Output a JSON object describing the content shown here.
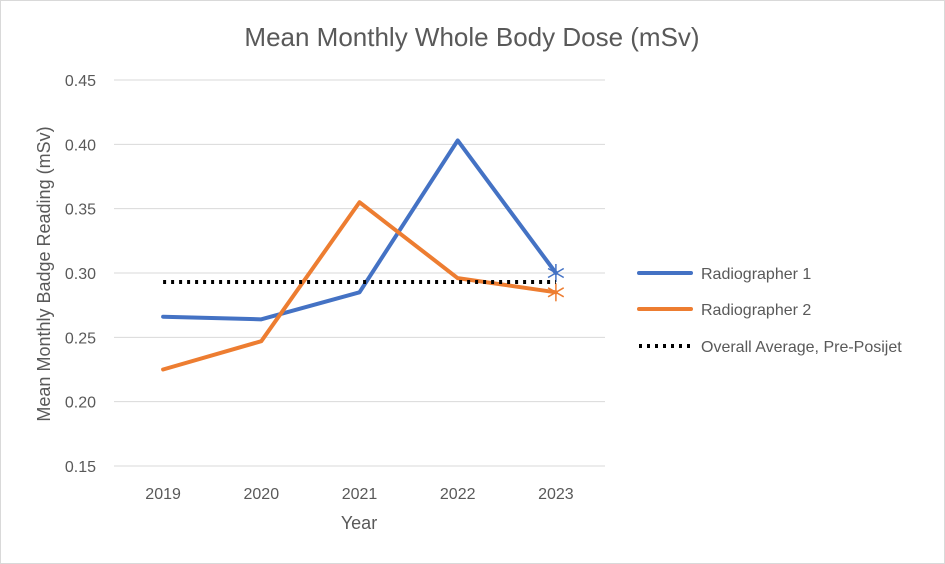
{
  "chart_data": {
    "type": "line",
    "title": "Mean Monthly Whole Body Dose (mSv)",
    "xlabel": "Year",
    "ylabel": "Mean Monthly Badge Reading (mSv)",
    "categories": [
      "2019",
      "2020",
      "2021",
      "2022",
      "2023"
    ],
    "ylim": [
      0.15,
      0.45
    ],
    "yticks": [
      0.15,
      0.2,
      0.25,
      0.3,
      0.35,
      0.4,
      0.45
    ],
    "ytick_labels": [
      "0.15",
      "0.20",
      "0.25",
      "0.30",
      "0.35",
      "0.40",
      "0.45"
    ],
    "grid": true,
    "legend_position": "right",
    "series": [
      {
        "name": "Radiographer 1",
        "values": [
          0.266,
          0.264,
          0.285,
          0.403,
          0.3
        ],
        "color": "#4472c4",
        "style": "solid",
        "end_marker": "star"
      },
      {
        "name": "Radiographer 2",
        "values": [
          0.225,
          0.247,
          0.355,
          0.296,
          0.285
        ],
        "color": "#ed7d31",
        "style": "solid",
        "end_marker": "star"
      },
      {
        "name": "Overall Average, Pre-Posijet",
        "values": [
          0.293,
          0.293,
          0.293,
          0.293,
          0.293
        ],
        "color": "#000000",
        "style": "dotted"
      }
    ]
  }
}
